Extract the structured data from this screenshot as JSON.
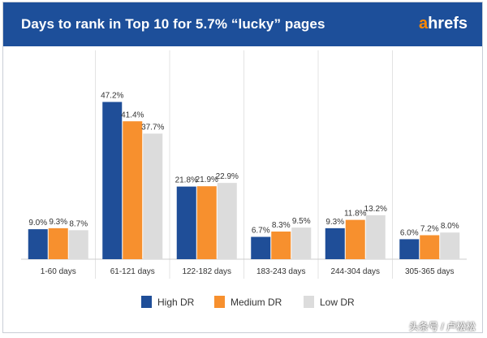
{
  "header": {
    "title": "Days to rank in Top 10 for 5.7% “lucky” pages",
    "logo": {
      "accent_letter": "a",
      "rest": "hrefs"
    }
  },
  "watermark": "头条号 / 卢松松",
  "colors": {
    "header_bg": "#1d4f9a",
    "high_dr": "#1f4e98",
    "medium_dr": "#f7902e",
    "low_dr": "#dcdcdc"
  },
  "chart_data": {
    "type": "bar",
    "title": "Days to rank in Top 10 for 5.7% “lucky” pages",
    "xlabel": "",
    "ylabel": "",
    "ylim": [
      0,
      50
    ],
    "grid": false,
    "legend_position": "bottom-center",
    "categories": [
      "1-60 days",
      "61-121 days",
      "122-182 days",
      "183-243 days",
      "244-304 days",
      "305-365 days"
    ],
    "series": [
      {
        "name": "High DR",
        "color": "#1f4e98",
        "values": [
          9.0,
          47.2,
          21.8,
          6.7,
          9.3,
          6.0
        ],
        "labels": [
          "9.0%",
          "47.2%",
          "21.8%",
          "6.7%",
          "9.3%",
          "6.0%"
        ]
      },
      {
        "name": "Medium DR",
        "color": "#f7902e",
        "values": [
          9.3,
          41.4,
          21.9,
          8.3,
          11.8,
          7.2
        ],
        "labels": [
          "9.3%",
          "41.4%",
          "21.9%",
          "8.3%",
          "11.8%",
          "7.2%"
        ]
      },
      {
        "name": "Low DR",
        "color": "#dcdcdc",
        "values": [
          8.7,
          37.7,
          22.9,
          9.5,
          13.2,
          8.0
        ],
        "labels": [
          "8.7%",
          "37.7%",
          "22.9%",
          "9.5%",
          "13.2%",
          "8.0%"
        ]
      }
    ]
  }
}
